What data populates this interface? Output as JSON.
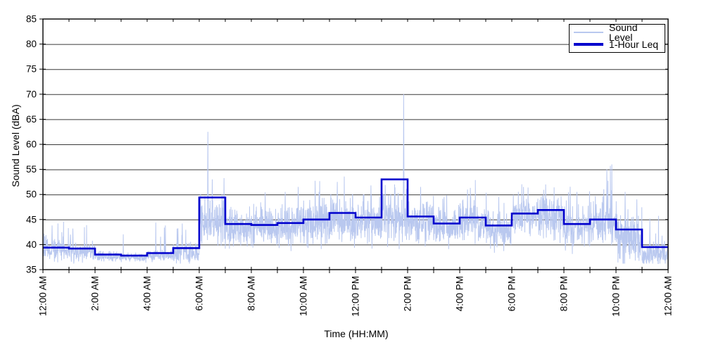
{
  "figure": {
    "background": "#ffffff",
    "frame_color": "#000000",
    "grid_color": "#3a3a3a"
  },
  "chart_data": {
    "type": "line",
    "title": "",
    "xlabel": "Time (HH:MM)",
    "ylabel": "Sound Level (dBA)",
    "xlim_hours": [
      0,
      24
    ],
    "ylim": [
      35,
      85
    ],
    "grid": "horizontal-solid",
    "y_ticks": [
      35,
      40,
      45,
      50,
      55,
      60,
      65,
      70,
      75,
      80,
      85
    ],
    "x_major_tick_hours": [
      0,
      2,
      4,
      6,
      8,
      10,
      12,
      14,
      16,
      18,
      20,
      22,
      24
    ],
    "x_major_tick_labels": [
      "12:00 AM",
      "2:00 AM",
      "4:00 AM",
      "6:00 AM",
      "8:00 AM",
      "10:00 AM",
      "12:00 PM",
      "2:00 PM",
      "4:00 PM",
      "6:00 PM",
      "8:00 PM",
      "10:00 PM",
      "12:00 AM"
    ],
    "x_minor_tick_every_hours": 1,
    "legend": {
      "position": "top-right",
      "entries": [
        {
          "label": "Sound Level",
          "color": "#b9c8ef",
          "line_width": 1
        },
        {
          "label": "1-Hour Leq",
          "color": "#0000cd",
          "line_width": 3
        }
      ]
    },
    "series": [
      {
        "name": "Sound Level",
        "style": "noisy-line",
        "color": "#b9c8ef",
        "note": "High-rate measured sound level; values synthesized from hourly envelope read off the plot",
        "synthesis": {
          "seed": 42,
          "points_per_hour": 120,
          "hourly_base_dBA": [
            38.8,
            38.5,
            37.7,
            37.5,
            37.8,
            38.3,
            44.3,
            43.3,
            43.3,
            43.6,
            44.2,
            44.8,
            44.6,
            45.2,
            44.7,
            43.7,
            44.6,
            43.1,
            45.3,
            45.7,
            43.4,
            44.2,
            40.8,
            37.8
          ],
          "hourly_sigma_dBA": [
            1.2,
            1.0,
            0.5,
            0.45,
            0.6,
            1.2,
            2.5,
            2.1,
            2.1,
            2.2,
            2.3,
            2.4,
            2.2,
            2.6,
            2.3,
            2.1,
            2.2,
            2.1,
            2.2,
            2.4,
            2.2,
            2.4,
            2.9,
            1.2
          ],
          "spike_probability": [
            0.05,
            0.04,
            0.01,
            0.01,
            0.03,
            0.06,
            0.06,
            0.04,
            0.04,
            0.05,
            0.05,
            0.05,
            0.04,
            0.05,
            0.04,
            0.04,
            0.04,
            0.04,
            0.05,
            0.05,
            0.04,
            0.05,
            0.06,
            0.04
          ],
          "spike_extra_dBA": [
            3.5,
            3.0,
            1.5,
            1.5,
            3.5,
            3.5,
            6.0,
            4.0,
            4.0,
            5.0,
            5.0,
            5.0,
            4.0,
            5.0,
            4.5,
            4.0,
            4.5,
            4.0,
            4.5,
            4.5,
            4.0,
            5.0,
            5.0,
            4.5
          ],
          "forced_spikes": [
            [
              0.35,
              43.8
            ],
            [
              1.15,
              43.2
            ],
            [
              4.7,
              43.8
            ],
            [
              5.35,
              44.2
            ],
            [
              6.05,
              50.0
            ],
            [
              6.33,
              62.5
            ],
            [
              6.5,
              53.0
            ],
            [
              9.3,
              50.5
            ],
            [
              9.8,
              51.5
            ],
            [
              10.6,
              50.5
            ],
            [
              11.3,
              52.5
            ],
            [
              12.3,
              50.0
            ],
            [
              13.5,
              52.0
            ],
            [
              13.85,
              70.0
            ],
            [
              14.5,
              51.5
            ],
            [
              15.4,
              49.5
            ],
            [
              16.3,
              51.0
            ],
            [
              17.5,
              49.5
            ],
            [
              18.45,
              51.5
            ],
            [
              19.3,
              52.0
            ],
            [
              20.5,
              50.5
            ],
            [
              21.65,
              55.0
            ],
            [
              22.35,
              50.5
            ],
            [
              22.8,
              49.0
            ],
            [
              23.3,
              45.2
            ]
          ],
          "floor_dBA": 36.2
        }
      },
      {
        "name": "1-Hour Leq",
        "style": "stairs",
        "color": "#0000cd",
        "hours": [
          0,
          1,
          2,
          3,
          4,
          5,
          6,
          7,
          8,
          9,
          10,
          11,
          12,
          13,
          14,
          15,
          16,
          17,
          18,
          19,
          20,
          21,
          22,
          23
        ],
        "values": [
          39.4,
          39.2,
          38.0,
          37.8,
          38.3,
          39.3,
          49.4,
          44.1,
          43.9,
          44.3,
          45.0,
          46.3,
          45.4,
          53.0,
          45.6,
          44.2,
          45.4,
          43.8,
          46.2,
          46.9,
          44.1,
          45.0,
          43.0,
          39.5
        ]
      }
    ]
  }
}
